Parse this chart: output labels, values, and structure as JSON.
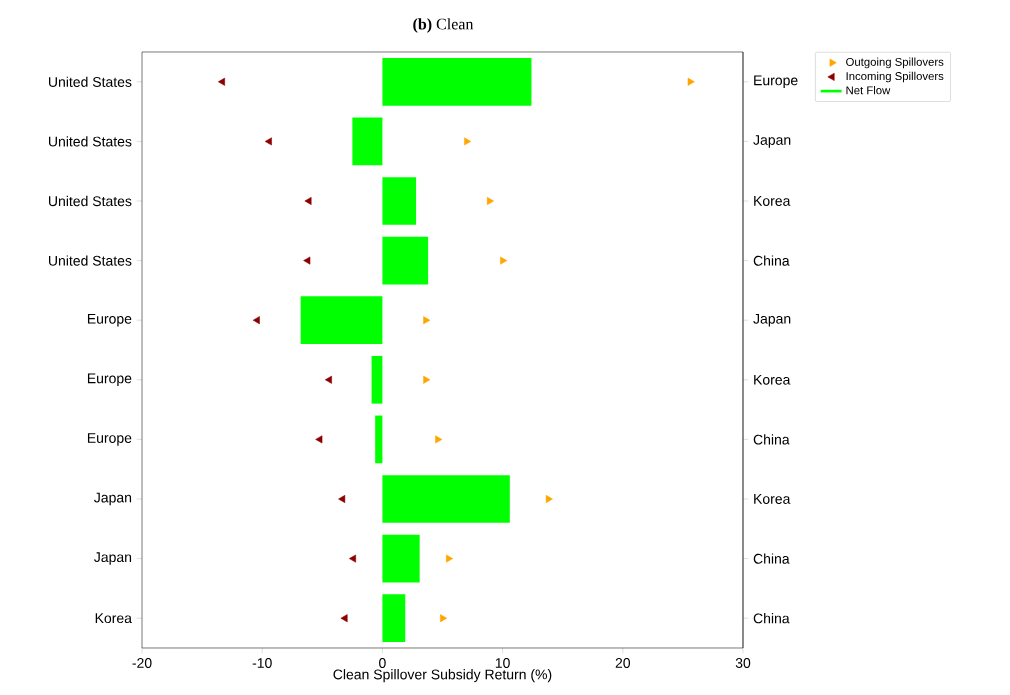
{
  "chart_data": {
    "type": "bar",
    "orientation": "horizontal",
    "title": "**(b)** Clean",
    "xlabel": "Clean Spillover Subsidy Return (%)",
    "categories": [
      "United States",
      "United States",
      "United States",
      "United States",
      "Europe",
      "Europe",
      "Europe",
      "Japan",
      "Japan",
      "Korea"
    ],
    "y2_categories": [
      "Europe",
      "Japan",
      "Korea",
      "China",
      "Japan",
      "Korea",
      "China",
      "Korea",
      "China",
      "China"
    ],
    "xlim": [
      -20,
      30
    ],
    "xticks": [
      -20,
      -10,
      0,
      10,
      20,
      30
    ],
    "legend": "top right",
    "series": [
      {
        "name": "Outgoing Spillovers",
        "type": "scatter",
        "marker": "triangle",
        "color": "#ffa500",
        "values": [
          25.6,
          7.0,
          8.9,
          10.0,
          3.6,
          3.6,
          4.6,
          13.8,
          5.5,
          5.0
        ]
      },
      {
        "name": "Incoming Spillovers",
        "type": "scatter",
        "marker": "triangle",
        "color": "#8b0000",
        "values": [
          -13.3,
          -9.4,
          -6.1,
          -6.2,
          -10.4,
          -4.4,
          -5.2,
          -3.3,
          -2.4,
          -3.1
        ]
      },
      {
        "name": "Net Flow",
        "color": "#00ff00",
        "values": [
          12.4,
          -2.5,
          2.8,
          3.8,
          -6.8,
          -0.9,
          -0.6,
          10.6,
          3.1,
          1.9
        ]
      }
    ]
  }
}
